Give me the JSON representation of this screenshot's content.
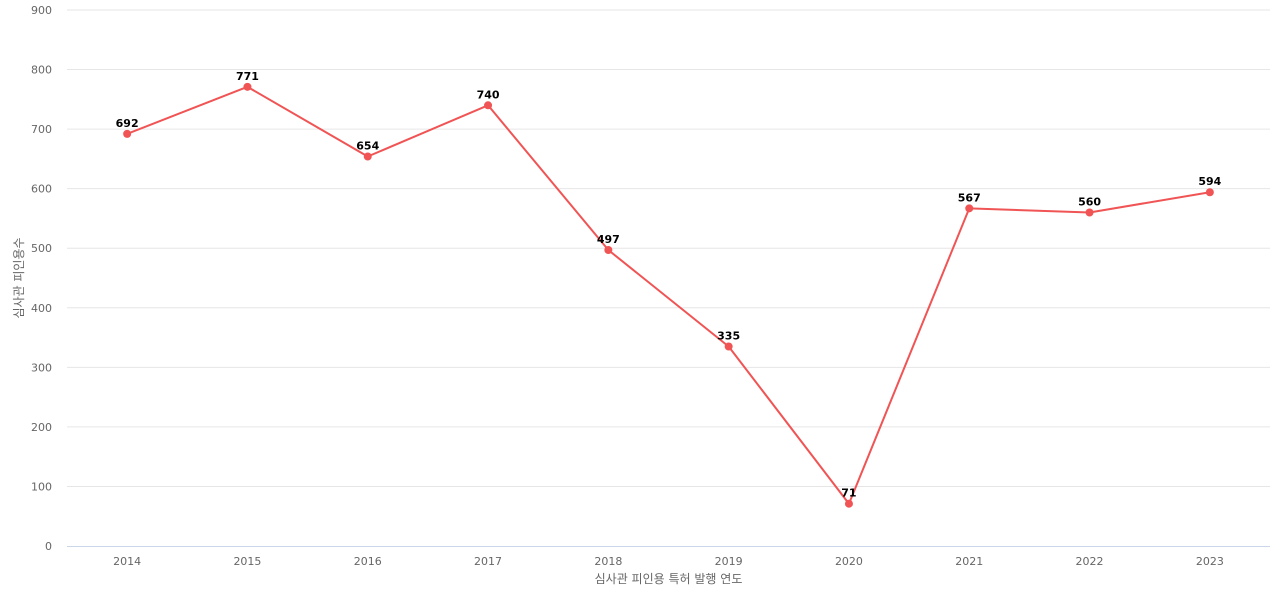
{
  "chart_data": {
    "type": "line",
    "title": "",
    "xlabel": "심사관 피인용 특허 발행 연도",
    "ylabel": "심사관 피인용수",
    "categories": [
      "2014",
      "2015",
      "2016",
      "2017",
      "2018",
      "2019",
      "2020",
      "2021",
      "2022",
      "2023"
    ],
    "series": [
      {
        "values": [
          692,
          771,
          654,
          740,
          497,
          335,
          71,
          567,
          560,
          594
        ],
        "color": "#f05454"
      }
    ],
    "ylim": [
      0,
      900
    ],
    "yticks": [
      "0",
      "100",
      "200",
      "300",
      "400",
      "500",
      "600",
      "700",
      "800",
      "900"
    ],
    "data_labels": true,
    "grid": true,
    "legend": "none"
  }
}
